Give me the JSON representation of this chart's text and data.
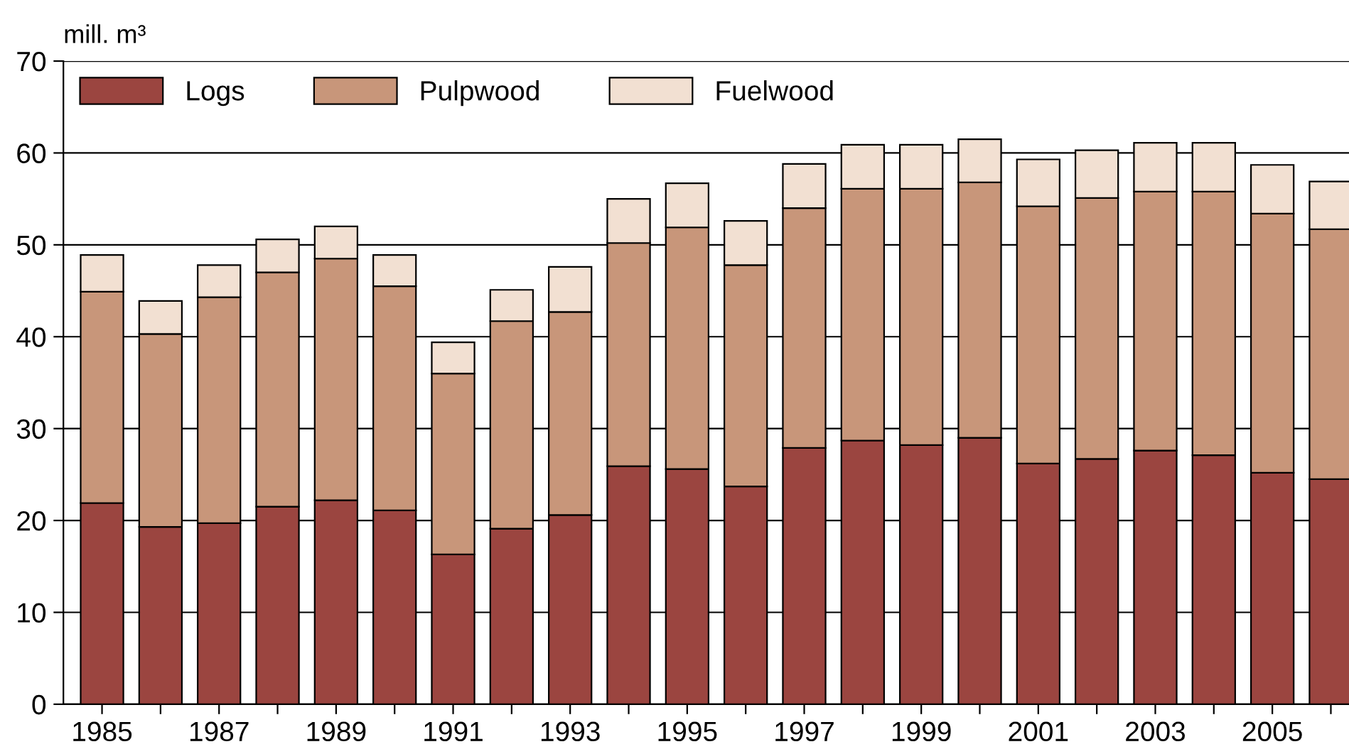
{
  "chart_data": {
    "type": "bar",
    "stacked": true,
    "ylabel": "mill. m³",
    "categories": [
      "1985",
      null,
      "1987",
      null,
      "1989",
      null,
      "1991",
      null,
      "1993",
      null,
      "1995",
      null,
      "1997",
      null,
      "1999",
      null,
      "2001",
      null,
      "2003",
      null,
      "2005",
      null
    ],
    "series": [
      {
        "name": "Logs",
        "color": "#9b4540",
        "values": [
          21.9,
          19.3,
          19.7,
          21.5,
          22.2,
          21.1,
          16.3,
          19.1,
          20.6,
          25.9,
          25.6,
          23.7,
          27.9,
          28.7,
          28.2,
          29.0,
          26.2,
          26.7,
          27.6,
          27.1,
          25.2,
          24.5
        ]
      },
      {
        "name": "Pulpwood",
        "color": "#c8967a",
        "values": [
          23.0,
          21.0,
          24.6,
          25.5,
          26.3,
          24.4,
          19.7,
          22.6,
          22.1,
          24.3,
          26.3,
          24.1,
          26.1,
          27.4,
          27.9,
          27.8,
          28.0,
          28.4,
          28.2,
          28.7,
          28.2,
          27.2
        ]
      },
      {
        "name": "Fuelwood",
        "color": "#f2e0d2",
        "values": [
          4.0,
          3.6,
          3.5,
          3.6,
          3.5,
          3.4,
          3.4,
          3.4,
          4.9,
          4.8,
          4.8,
          4.8,
          4.8,
          4.8,
          4.8,
          4.7,
          5.1,
          5.2,
          5.3,
          5.3,
          5.3,
          5.2
        ]
      }
    ],
    "ylim": [
      0,
      70
    ],
    "yticks": [
      0,
      10,
      20,
      30,
      40,
      50,
      60,
      70
    ],
    "grid": "y",
    "legend": "top left"
  }
}
